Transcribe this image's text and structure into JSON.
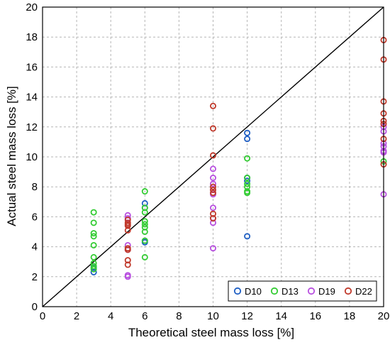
{
  "chart_data": {
    "type": "scatter",
    "title": "",
    "xlabel": "Theoretical steel mass loss [%]",
    "ylabel": "Actual steel mass loss [%]",
    "xlim": [
      0,
      20
    ],
    "ylim": [
      0,
      20
    ],
    "xticks": [
      "0",
      "2",
      "4",
      "6",
      "8",
      "10",
      "12",
      "14",
      "16",
      "18",
      "20"
    ],
    "yticks": [
      "0",
      "2",
      "4",
      "6",
      "8",
      "10",
      "12",
      "14",
      "16",
      "18",
      "20"
    ],
    "grid": true,
    "legend_position": "bottom-right",
    "reference_line": {
      "x": [
        0,
        20
      ],
      "y": [
        0,
        20
      ]
    },
    "series": [
      {
        "name": "D10",
        "color": "#1f5fc4",
        "x": [
          3,
          3,
          6,
          6,
          6,
          6,
          12,
          12,
          12,
          12,
          12
        ],
        "y": [
          2.3,
          2.6,
          6.9,
          6.6,
          4.4,
          4.3,
          11.6,
          11.2,
          8.6,
          8.4,
          4.7
        ]
      },
      {
        "name": "D13",
        "color": "#33cc33",
        "x": [
          3,
          3,
          3,
          3,
          3,
          3,
          3,
          3,
          3,
          6,
          6,
          6,
          6,
          6,
          6,
          6,
          6,
          6,
          12,
          12,
          12,
          12,
          12,
          12,
          20
        ],
        "y": [
          6.3,
          5.6,
          4.9,
          4.7,
          4.1,
          3.3,
          2.9,
          2.7,
          2.5,
          7.7,
          6.6,
          6.3,
          5.7,
          5.5,
          5.3,
          5.0,
          4.4,
          3.3,
          9.9,
          8.6,
          8.2,
          8.0,
          7.7,
          7.6,
          9.7
        ]
      },
      {
        "name": "D19",
        "color": "#b84fe0",
        "x": [
          5,
          5,
          5,
          5,
          5,
          5,
          10,
          10,
          10,
          10,
          10,
          10,
          10,
          10,
          10,
          20,
          20,
          20,
          20,
          20,
          20,
          20
        ],
        "y": [
          6.1,
          5.9,
          4.1,
          3.8,
          2.1,
          2.0,
          9.2,
          8.6,
          8.2,
          7.8,
          7.5,
          6.6,
          5.9,
          5.6,
          3.9,
          12.0,
          11.7,
          10.9,
          10.7,
          10.4,
          10.3,
          7.5
        ]
      },
      {
        "name": "D22",
        "color": "#c0392b",
        "x": [
          5,
          5,
          5,
          5,
          5,
          5,
          5,
          5,
          5,
          10,
          10,
          10,
          10,
          10,
          10,
          10,
          10,
          20,
          20,
          20,
          20,
          20,
          20,
          20,
          20
        ],
        "y": [
          5.8,
          5.6,
          5.5,
          5.4,
          5.1,
          3.9,
          3.8,
          3.1,
          2.8,
          13.4,
          11.9,
          10.1,
          8.0,
          7.8,
          7.6,
          6.2,
          5.9,
          17.8,
          16.5,
          13.7,
          12.9,
          12.4,
          12.2,
          11.2,
          9.5
        ]
      }
    ]
  }
}
